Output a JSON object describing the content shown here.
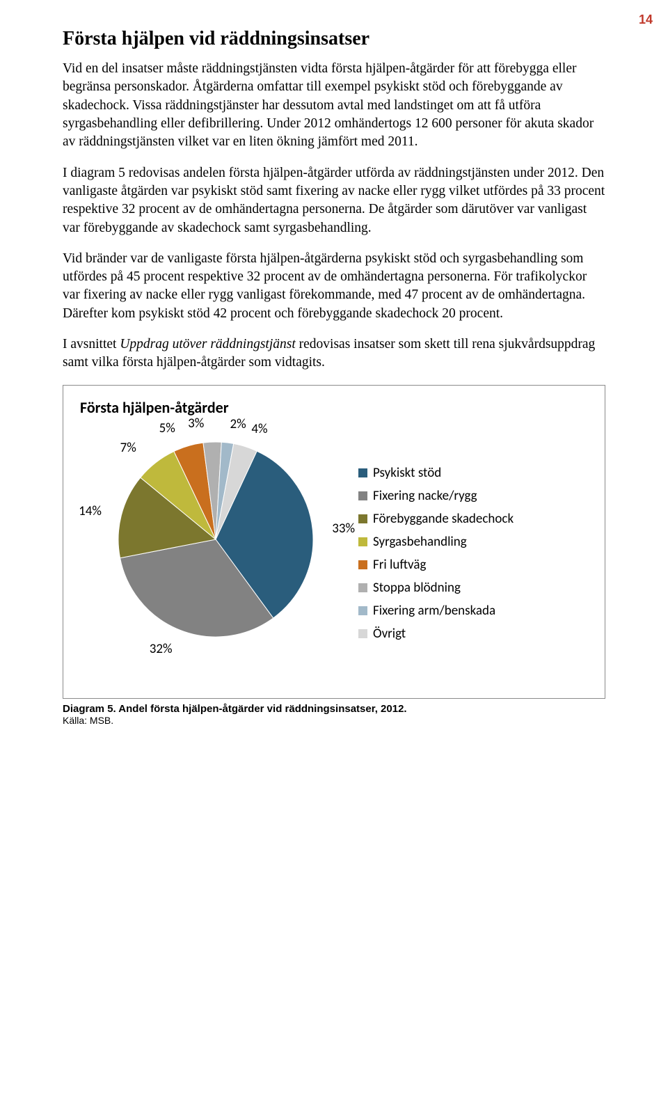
{
  "page_number": "14",
  "heading": "Första hjälpen vid räddningsinsatser",
  "paragraphs": {
    "p1": "Vid en del insatser måste räddningstjänsten vidta första hjälpen-åtgärder för att förebygga eller begränsa personskador. Åtgärderna omfattar till exempel psykiskt stöd och förebyggande av skadechock. Vissa räddningstjänster har dessutom avtal med landstinget om att få utföra syrgasbehandling eller defibrillering. Under 2012 omhändertogs 12 600 personer för akuta skador av räddningstjänsten vilket var en liten ökning jämfört med 2011.",
    "p2": "I diagram 5 redovisas andelen första hjälpen-åtgärder utförda av räddningstjänsten under 2012. Den vanligaste åtgärden var psykiskt stöd samt fixering av nacke eller rygg vilket utfördes på 33 procent respektive 32 procent av de omhändertagna personerna. De åtgärder som därutöver var vanligast var förebyggande av skadechock samt syrgasbehandling.",
    "p3": "Vid bränder var de vanligaste första hjälpen-åtgärderna psykiskt stöd och syrgasbehandling som utfördes på 45 procent respektive 32 procent av de omhändertagna personerna. För trafikolyckor var fixering av nacke eller rygg vanligast förekommande, med 47 procent av de omhändertagna. Därefter kom psykiskt stöd 42 procent och förebyggande skadechock 20 procent.",
    "p4_a": "I avsnittet ",
    "p4_italic": "Uppdrag utöver räddningstjänst",
    "p4_b": " redovisas insatser som skett till rena sjukvårdsuppdrag samt vilka första hjälpen-åtgärder som vidtagits."
  },
  "chart": {
    "title": "Första hjälpen-åtgärder",
    "type": "pie",
    "background_color": "#ffffff",
    "border_color": "#8a8a8a",
    "slices": [
      {
        "label": "Psykiskt stöd",
        "value": 33,
        "color": "#2a5d7c",
        "display": "33%"
      },
      {
        "label": "Fixering nacke/rygg",
        "value": 32,
        "color": "#828282",
        "display": "32%"
      },
      {
        "label": "Förebyggande skadechock",
        "value": 14,
        "color": "#7c772e",
        "display": "14%"
      },
      {
        "label": "Syrgasbehandling",
        "value": 7,
        "color": "#bfb93c",
        "display": "7%"
      },
      {
        "label": "Fri luftväg",
        "value": 5,
        "color": "#c96f1e",
        "display": "5%"
      },
      {
        "label": "Stoppa blödning",
        "value": 3,
        "color": "#b0b0b0",
        "display": "3%"
      },
      {
        "label": "Fixering arm/benskada",
        "value": 2,
        "color": "#a2b9c9",
        "display": "2%"
      },
      {
        "label": "Övrigt",
        "value": 4,
        "color": "#d7d7d7",
        "display": "4%"
      }
    ],
    "label_fontsize": 19,
    "label_font": "Calibri, Arial, sans-serif",
    "legend_marker": "square",
    "pie_radius": 140,
    "start_angle_deg": -65
  },
  "caption": "Diagram 5. Andel första hjälpen-åtgärder vid räddningsinsatser, 2012.",
  "source": "Källa: MSB."
}
